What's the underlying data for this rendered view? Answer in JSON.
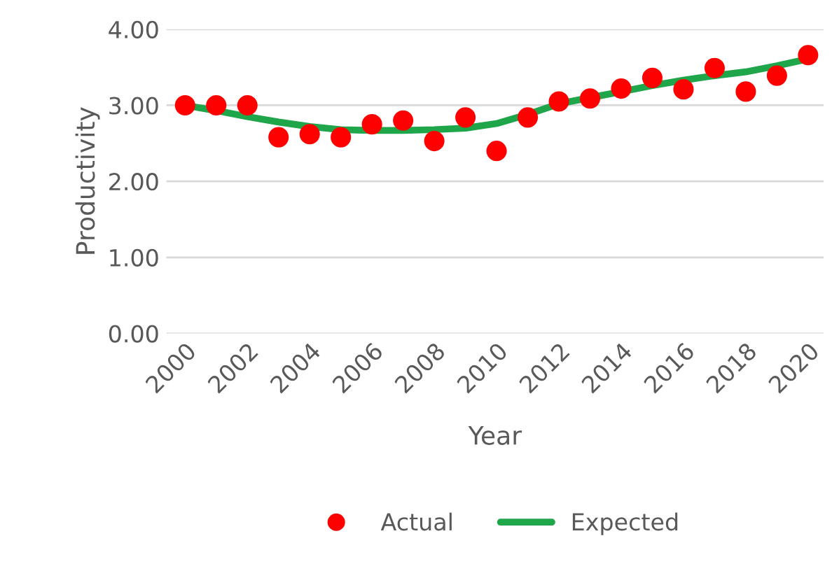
{
  "chart_data": {
    "type": "scatter",
    "xlabel": "Year",
    "ylabel": "Productivity",
    "xlim": [
      1999.4,
      2020.5
    ],
    "xticks": [
      2000,
      2002,
      2004,
      2006,
      2008,
      2010,
      2012,
      2014,
      2016,
      2018,
      2020
    ],
    "ylim": [
      0,
      4
    ],
    "yticks": [
      {
        "value": 0,
        "label": "0.00"
      },
      {
        "value": 1,
        "label": "1.00"
      },
      {
        "value": 2,
        "label": "2.00"
      },
      {
        "value": 3,
        "label": "3.00"
      },
      {
        "value": 4,
        "label": "4.00"
      }
    ],
    "grid": "y",
    "legend": "bottom",
    "series": [
      {
        "name": "Actual",
        "color": "#ff0000",
        "marker": "circle",
        "x": [
          2000,
          2001,
          2002,
          2003,
          2004,
          2005,
          2006,
          2007,
          2008,
          2009,
          2010,
          2011,
          2012,
          2013,
          2014,
          2015,
          2016,
          2017,
          2018,
          2019,
          2020
        ],
        "values": [
          3.0,
          3.0,
          3.0,
          2.58,
          2.62,
          2.58,
          2.75,
          2.8,
          2.53,
          2.84,
          2.4,
          2.84,
          3.05,
          3.09,
          3.22,
          3.36,
          3.21,
          3.49,
          3.18,
          3.39,
          3.66
        ]
      },
      {
        "name": "Expected",
        "type": "line",
        "color": "#1fa64a",
        "x": [
          2000,
          2001,
          2002,
          2003,
          2004,
          2005,
          2006,
          2007,
          2008,
          2009,
          2010,
          2011,
          2012,
          2013,
          2014,
          2015,
          2016,
          2017,
          2018,
          2019,
          2020
        ],
        "values": [
          3.0,
          2.93,
          2.85,
          2.78,
          2.72,
          2.68,
          2.67,
          2.67,
          2.68,
          2.7,
          2.76,
          2.88,
          3.02,
          3.1,
          3.18,
          3.26,
          3.33,
          3.39,
          3.44,
          3.52,
          3.61
        ]
      }
    ]
  }
}
